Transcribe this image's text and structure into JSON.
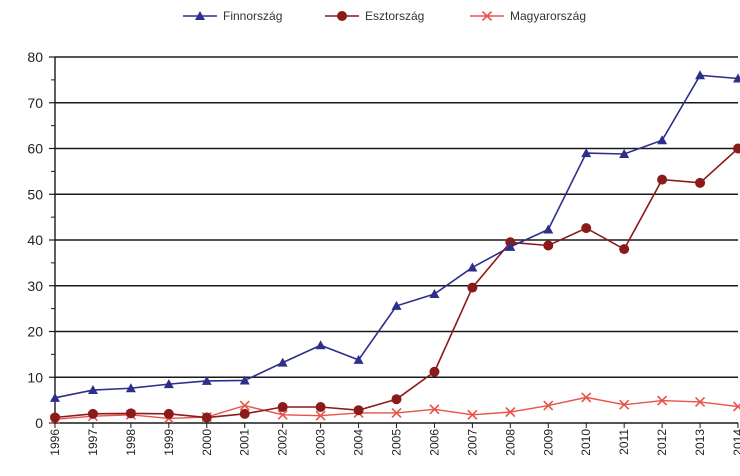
{
  "chart_data": {
    "type": "line",
    "x": [
      "1996",
      "1997",
      "1998",
      "1999",
      "2000",
      "2001",
      "2002",
      "2003",
      "2004",
      "2005",
      "2006",
      "2007",
      "2008",
      "2009",
      "2010",
      "2011",
      "2012",
      "2013",
      "2014"
    ],
    "ylim": [
      0,
      80
    ],
    "yticks": [
      0,
      10,
      20,
      30,
      40,
      50,
      60,
      70,
      80
    ],
    "grid": "horizontal",
    "legend_position": "top",
    "series": [
      {
        "name": "Finnország",
        "color": "#2e2f8a",
        "marker": "triangle",
        "values": [
          5.5,
          7.2,
          7.6,
          8.5,
          9.2,
          9.3,
          13.2,
          17.0,
          13.8,
          25.6,
          28.2,
          34.0,
          38.5,
          42.3,
          59.0,
          58.8,
          61.8,
          76.0,
          75.3
        ]
      },
      {
        "name": "Esztország",
        "color": "#8b1a1a",
        "marker": "circle",
        "values": [
          1.2,
          2.0,
          2.1,
          2.0,
          1.2,
          2.0,
          3.5,
          3.5,
          2.8,
          5.2,
          11.2,
          29.6,
          39.5,
          38.8,
          42.6,
          38.0,
          53.2,
          52.5,
          60.0
        ]
      },
      {
        "name": "Magyarország",
        "color": "#e8534a",
        "marker": "x",
        "values": [
          0.8,
          1.5,
          1.8,
          1.0,
          1.3,
          3.8,
          1.8,
          1.6,
          2.2,
          2.2,
          3.0,
          1.8,
          2.4,
          3.8,
          5.6,
          4.0,
          4.9,
          4.6,
          3.6
        ]
      }
    ]
  }
}
